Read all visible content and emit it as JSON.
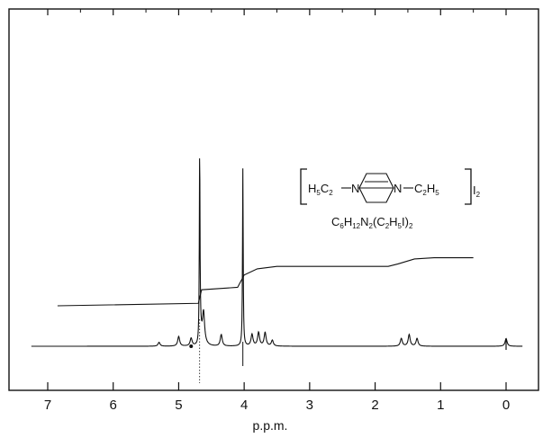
{
  "chart_data": {
    "type": "line",
    "xlabel": "p.p.m.",
    "xlim": [
      7.4,
      -0.4
    ],
    "x_ticks": [
      7,
      6,
      5,
      4,
      3,
      2,
      1,
      0
    ],
    "x_tick_labels": [
      "7",
      "6",
      "5",
      "4",
      "3",
      "2",
      "1",
      "0"
    ],
    "grid": false,
    "legend": "none",
    "series": [
      {
        "role": "spectrum",
        "peaks": [
          {
            "ppm": 5.3,
            "height": 0.02
          },
          {
            "ppm": 5.0,
            "height": 0.05
          },
          {
            "ppm": 4.81,
            "height": 0.04
          },
          {
            "ppm": 4.68,
            "height": 1.0
          },
          {
            "ppm": 4.62,
            "height": 0.15
          },
          {
            "ppm": 4.35,
            "height": 0.06
          },
          {
            "ppm": 4.02,
            "height": 0.92
          },
          {
            "ppm": 3.88,
            "height": 0.06
          },
          {
            "ppm": 3.78,
            "height": 0.07
          },
          {
            "ppm": 3.68,
            "height": 0.07
          },
          {
            "ppm": 3.57,
            "height": 0.03
          },
          {
            "ppm": 1.6,
            "height": 0.04
          },
          {
            "ppm": 1.48,
            "height": 0.06
          },
          {
            "ppm": 1.36,
            "height": 0.04
          },
          {
            "ppm": 0.0,
            "height": 0.04
          }
        ]
      },
      {
        "role": "integral",
        "points": [
          [
            6.85,
            0.0
          ],
          [
            4.7,
            0.02
          ],
          [
            4.65,
            0.13
          ],
          [
            4.1,
            0.15
          ],
          [
            4.0,
            0.25
          ],
          [
            3.8,
            0.3
          ],
          [
            3.5,
            0.32
          ],
          [
            1.8,
            0.32
          ],
          [
            1.65,
            0.34
          ],
          [
            1.4,
            0.38
          ],
          [
            1.1,
            0.39
          ],
          [
            0.5,
            0.39
          ]
        ]
      }
    ],
    "annotation": {
      "left_group": [
        "H",
        "5",
        "C",
        "2"
      ],
      "right_group": [
        "C",
        "2",
        "H",
        "5"
      ],
      "counter_ion": [
        "I",
        "2"
      ],
      "N": "N",
      "formula_line": [
        "C",
        "6",
        "H",
        "12",
        "N",
        "2",
        "(C",
        "2",
        "H",
        "5",
        "I)",
        "2"
      ]
    }
  }
}
